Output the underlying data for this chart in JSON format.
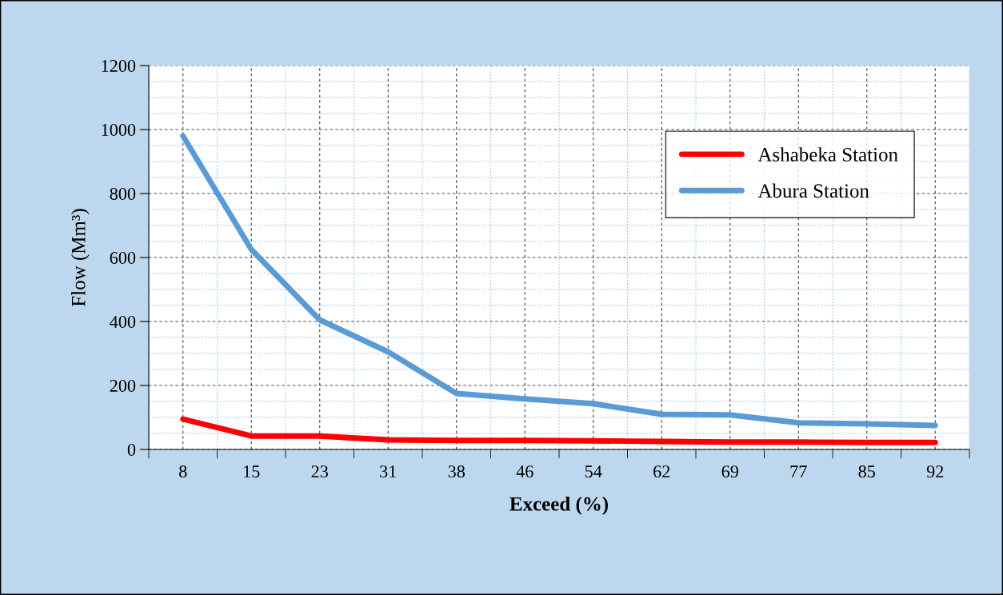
{
  "chart_data": {
    "type": "line",
    "xlabel": "Exceed (%)",
    "ylabel": "Flow (Mm³)",
    "categories": [
      "8",
      "15",
      "23",
      "31",
      "38",
      "46",
      "54",
      "62",
      "69",
      "77",
      "85",
      "92"
    ],
    "series": [
      {
        "name": "Ashabeka Station",
        "color": "#ff0000",
        "values": [
          95,
          42,
          42,
          30,
          28,
          28,
          27,
          25,
          23,
          23,
          22,
          22
        ]
      },
      {
        "name": "Abura Station",
        "color": "#5b9bd5",
        "values": [
          980,
          625,
          405,
          305,
          175,
          158,
          143,
          110,
          108,
          83,
          80,
          75
        ]
      }
    ],
    "ylim": [
      0,
      1200
    ],
    "yticks": [
      0,
      200,
      400,
      600,
      800,
      1000,
      1200
    ],
    "grid": true,
    "legend": "top right",
    "marker": "none",
    "line_style": "solid"
  }
}
